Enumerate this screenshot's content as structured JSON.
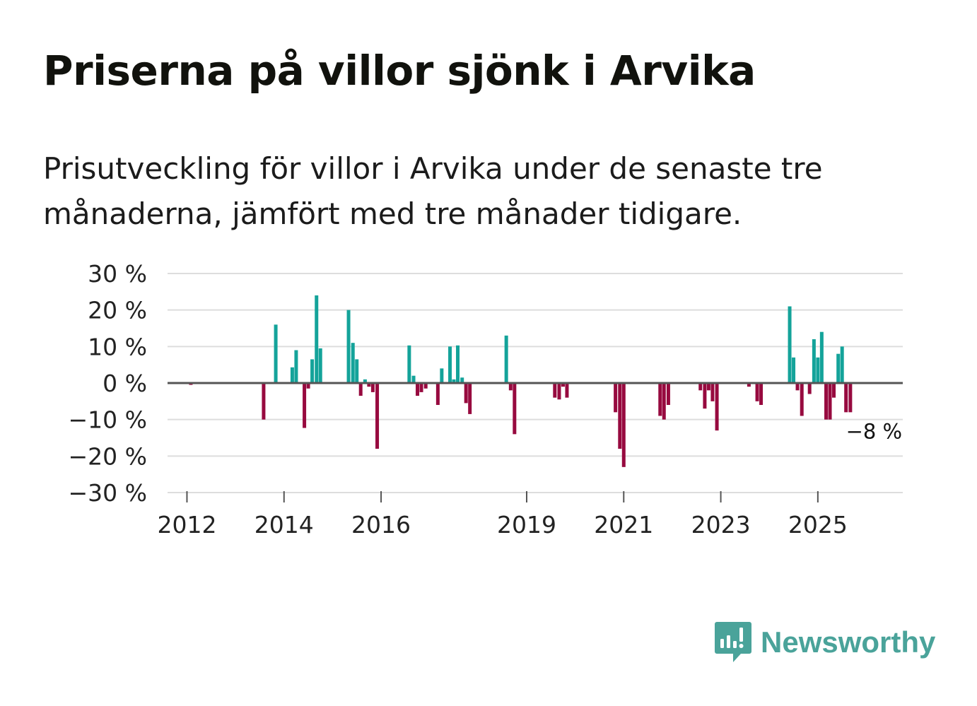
{
  "title": "Priserna på villor sjönk i Arvika",
  "subtitle": "Prisutveckling för villor i Arvika under de senaste tre månaderna, jämfört med tre månader tidigare.",
  "colors": {
    "positive": "#14a39a",
    "negative": "#970a3f",
    "zero_line": "#555555",
    "grid": "#dddddd",
    "text": "#222222",
    "logo": "#4aa39a"
  },
  "logo": {
    "icon": "newsworthy-bar-chart-bubble-icon",
    "text": "Newsworthy"
  },
  "chart_data": {
    "type": "bar",
    "title": "Priserna på villor sjönk i Arvika",
    "ylabel": "",
    "xlabel": "",
    "ylim": [
      -30,
      30
    ],
    "y_ticks": [
      30,
      20,
      10,
      0,
      -10,
      -20,
      -30
    ],
    "y_tick_labels": [
      "30 %",
      "20 %",
      "10 %",
      "0 %",
      "−10 %",
      "−20 %",
      "−30 %"
    ],
    "x_range": [
      2011.6,
      2026.75
    ],
    "x_ticks": [
      2012,
      2014,
      2016,
      2019,
      2021,
      2023,
      2025
    ],
    "x_tick_labels": [
      "2012",
      "2014",
      "2016",
      "2019",
      "2021",
      "2023",
      "2025"
    ],
    "annotation": {
      "x": 2025.75,
      "value": -8,
      "label": "−8 %"
    },
    "points": [
      {
        "x": 2012.08,
        "value": -0.5
      },
      {
        "x": 2013.58,
        "value": -10
      },
      {
        "x": 2013.83,
        "value": 16
      },
      {
        "x": 2014.17,
        "value": 4.3
      },
      {
        "x": 2014.25,
        "value": 9
      },
      {
        "x": 2014.42,
        "value": -12.3
      },
      {
        "x": 2014.5,
        "value": -1.5
      },
      {
        "x": 2014.58,
        "value": 6.5
      },
      {
        "x": 2014.67,
        "value": 24
      },
      {
        "x": 2014.75,
        "value": 9.5
      },
      {
        "x": 2015.33,
        "value": 20
      },
      {
        "x": 2015.42,
        "value": 11
      },
      {
        "x": 2015.5,
        "value": 6.5
      },
      {
        "x": 2015.58,
        "value": -3.5
      },
      {
        "x": 2015.67,
        "value": 1
      },
      {
        "x": 2015.75,
        "value": -1
      },
      {
        "x": 2015.83,
        "value": -2.5
      },
      {
        "x": 2015.92,
        "value": -18
      },
      {
        "x": 2016.58,
        "value": 10.3
      },
      {
        "x": 2016.67,
        "value": 2
      },
      {
        "x": 2016.75,
        "value": -3.5
      },
      {
        "x": 2016.83,
        "value": -2.5
      },
      {
        "x": 2016.92,
        "value": -1.5
      },
      {
        "x": 2017.17,
        "value": -6
      },
      {
        "x": 2017.25,
        "value": 4
      },
      {
        "x": 2017.42,
        "value": 10
      },
      {
        "x": 2017.5,
        "value": 1
      },
      {
        "x": 2017.58,
        "value": 10.3
      },
      {
        "x": 2017.67,
        "value": 1.5
      },
      {
        "x": 2017.75,
        "value": -5.5
      },
      {
        "x": 2017.83,
        "value": -8.5
      },
      {
        "x": 2018.58,
        "value": 13
      },
      {
        "x": 2018.67,
        "value": -2
      },
      {
        "x": 2018.75,
        "value": -14
      },
      {
        "x": 2019.58,
        "value": -4
      },
      {
        "x": 2019.67,
        "value": -4.5
      },
      {
        "x": 2019.75,
        "value": -1
      },
      {
        "x": 2019.83,
        "value": -4
      },
      {
        "x": 2020.83,
        "value": -8
      },
      {
        "x": 2020.92,
        "value": -18
      },
      {
        "x": 2021.0,
        "value": -23
      },
      {
        "x": 2021.75,
        "value": -9
      },
      {
        "x": 2021.83,
        "value": -10
      },
      {
        "x": 2021.92,
        "value": -6
      },
      {
        "x": 2022.58,
        "value": -2
      },
      {
        "x": 2022.67,
        "value": -7
      },
      {
        "x": 2022.75,
        "value": -2
      },
      {
        "x": 2022.83,
        "value": -5
      },
      {
        "x": 2022.92,
        "value": -13
      },
      {
        "x": 2023.58,
        "value": -1
      },
      {
        "x": 2023.75,
        "value": -5
      },
      {
        "x": 2023.83,
        "value": -6
      },
      {
        "x": 2024.42,
        "value": 21
      },
      {
        "x": 2024.5,
        "value": 7
      },
      {
        "x": 2024.58,
        "value": -2
      },
      {
        "x": 2024.67,
        "value": -9
      },
      {
        "x": 2024.83,
        "value": -3
      },
      {
        "x": 2024.92,
        "value": 12
      },
      {
        "x": 2025.0,
        "value": 7
      },
      {
        "x": 2025.08,
        "value": 14
      },
      {
        "x": 2025.17,
        "value": -10
      },
      {
        "x": 2025.25,
        "value": -10
      },
      {
        "x": 2025.33,
        "value": -4
      },
      {
        "x": 2025.42,
        "value": 8
      },
      {
        "x": 2025.5,
        "value": 10
      },
      {
        "x": 2025.58,
        "value": -8
      },
      {
        "x": 2025.67,
        "value": -8
      }
    ]
  }
}
